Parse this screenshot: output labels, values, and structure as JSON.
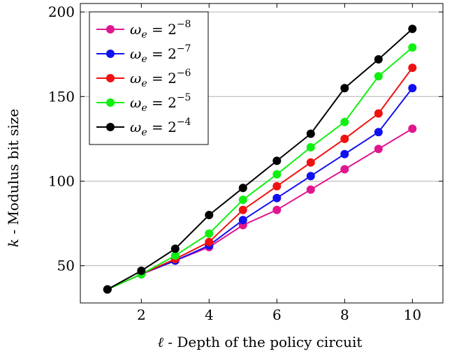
{
  "chart_data": {
    "type": "line",
    "xlabel_symbol": "ℓ",
    "xlabel_text": " - Depth of the policy circuit",
    "ylabel_symbol": "k",
    "ylabel_text": " - Modulus bit size",
    "xlim": [
      0.2,
      10.9
    ],
    "ylim": [
      28,
      205
    ],
    "xticks": [
      2,
      4,
      6,
      8,
      10
    ],
    "yticks": [
      50,
      100,
      150,
      200
    ],
    "grid": "horizontal",
    "legend_position": "top-left",
    "x": [
      1,
      2,
      3,
      4,
      5,
      6,
      7,
      8,
      9,
      10
    ],
    "series": [
      {
        "name_base": "ω",
        "name_sub": "e",
        "name_rhs": " = 2",
        "name_exp": "−8",
        "color": "#e0168f",
        "values": [
          36,
          45,
          53,
          61,
          74,
          83,
          95,
          107,
          119,
          131
        ]
      },
      {
        "name_base": "ω",
        "name_sub": "e",
        "name_rhs": " = 2",
        "name_exp": "−7",
        "color": "#1010f0",
        "values": [
          36,
          45,
          53,
          62,
          77,
          90,
          103,
          116,
          129,
          155
        ]
      },
      {
        "name_base": "ω",
        "name_sub": "e",
        "name_rhs": " = 2",
        "name_exp": "−6",
        "color": "#f01010",
        "values": [
          36,
          45,
          54,
          64,
          83,
          97,
          111,
          125,
          140,
          167
        ]
      },
      {
        "name_base": "ω",
        "name_sub": "e",
        "name_rhs": " = 2",
        "name_exp": "−5",
        "color": "#10f010",
        "values": [
          36,
          45,
          56,
          69,
          89,
          104,
          120,
          135,
          162,
          179
        ]
      },
      {
        "name_base": "ω",
        "name_sub": "e",
        "name_rhs": " = 2",
        "name_exp": "−4",
        "color": "#000000",
        "values": [
          36,
          47,
          60,
          80,
          96,
          112,
          128,
          155,
          172,
          190
        ]
      }
    ]
  }
}
